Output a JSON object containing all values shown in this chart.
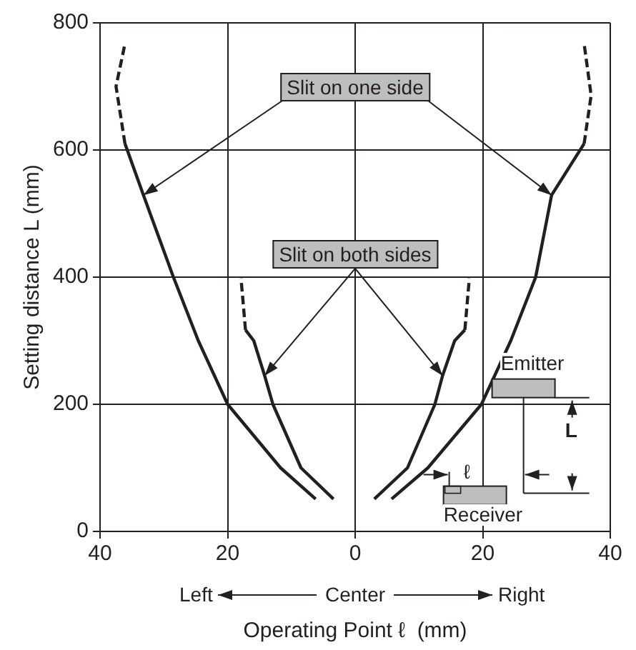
{
  "chart_data": {
    "type": "line",
    "xlabel": "Operating Point ℓ  (mm)",
    "ylabel": "Setting distance L (mm)",
    "xlim": [
      -40,
      40
    ],
    "xticks": [
      {
        "value": -40,
        "label": "40"
      },
      {
        "value": -20,
        "label": "20"
      },
      0,
      20,
      40
    ],
    "ylim": [
      0,
      800
    ],
    "yticks": [
      0,
      200,
      400,
      600,
      800
    ],
    "grid": true,
    "legend": false,
    "marker": "none",
    "annotations": [
      {
        "text": "Slit on one side",
        "x": -33.2,
        "y": 529
      },
      {
        "text": "Slit on both sides",
        "x": -14.2,
        "y": 245
      },
      "Emitter",
      "Receiver",
      "ℓ",
      "L",
      "Left",
      "Center",
      "Right"
    ],
    "series": [
      {
        "type": "line",
        "line_style": "solid",
        "color": "#231f20",
        "x": [
          -6.2,
          -11.7,
          -20,
          -24.6,
          -28.5,
          -33.2,
          -36.1
        ],
        "values": [
          51,
          100,
          200,
          300,
          400,
          529,
          610
        ]
      },
      {
        "type": "line",
        "line_style": "dashed",
        "color": "#231f20",
        "x": [
          -36.1,
          -37.5,
          -36.1
        ],
        "values": [
          610,
          700,
          767
        ]
      },
      {
        "type": "line",
        "line_style": "solid",
        "color": "#231f20",
        "x": [
          -3.4,
          -8.5,
          -12.9,
          -14.2,
          -15.9,
          -17.2
        ],
        "values": [
          51,
          100,
          200,
          245,
          300,
          317
        ]
      },
      {
        "type": "line",
        "line_style": "dashed",
        "color": "#231f20",
        "x": [
          -17.2,
          -17.9
        ],
        "values": [
          317,
          398
        ]
      },
      {
        "type": "line",
        "line_style": "solid",
        "color": "#231f20",
        "x": [
          5.7,
          11.4,
          19.8,
          24.4,
          28.3,
          30.8,
          35.9
        ],
        "values": [
          51,
          100,
          200,
          300,
          400,
          529,
          610
        ]
      },
      {
        "type": "line",
        "line_style": "dashed",
        "color": "#231f20",
        "x": [
          35.9,
          37,
          35.9
        ],
        "values": [
          610,
          686,
          767
        ]
      },
      {
        "type": "line",
        "line_style": "solid",
        "color": "#231f20",
        "x": [
          3,
          8.2,
          12.5,
          13.7,
          15.6,
          17.2
        ],
        "values": [
          51,
          100,
          200,
          245,
          300,
          317
        ]
      },
      {
        "type": "line",
        "line_style": "dashed",
        "color": "#231f20",
        "x": [
          17.2,
          17.9
        ],
        "values": [
          317,
          398
        ]
      }
    ]
  }
}
